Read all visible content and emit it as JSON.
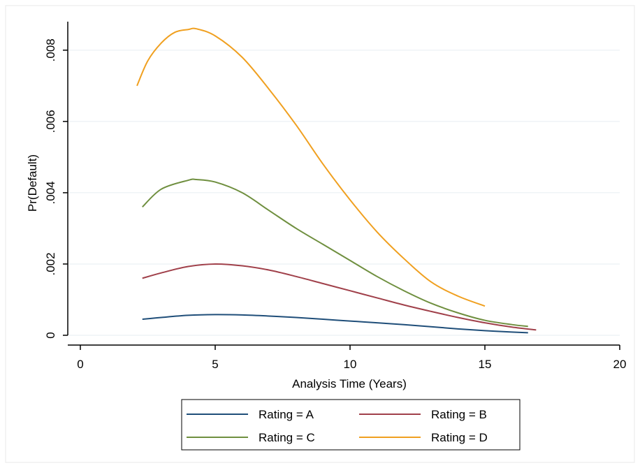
{
  "chart_data": {
    "type": "line",
    "title": "",
    "xlabel": "Analysis Time (Years)",
    "ylabel": "Pr(Default)",
    "xlim": [
      0,
      20
    ],
    "ylim": [
      0,
      0.0088
    ],
    "xticks": [
      0,
      5,
      10,
      15,
      20
    ],
    "xtick_labels": [
      "0",
      "5",
      "10",
      "15",
      "20"
    ],
    "yticks": [
      0,
      0.002,
      0.004,
      0.006,
      0.008
    ],
    "ytick_labels": [
      "0",
      ".002",
      ".004",
      ".006",
      ".008"
    ],
    "grid": "horizontal",
    "legend_position": "bottom",
    "series": [
      {
        "name": "Rating = A",
        "color": "#1f4e79",
        "x": [
          2.3,
          3.0,
          4.0,
          5.0,
          6.0,
          7.0,
          8.0,
          9.0,
          10.0,
          11.0,
          12.0,
          13.0,
          14.0,
          15.0,
          16.0,
          16.6
        ],
        "y": [
          0.00045,
          0.0005,
          0.00056,
          0.00058,
          0.00057,
          0.00054,
          0.0005,
          0.00045,
          0.0004,
          0.00035,
          0.0003,
          0.00024,
          0.00018,
          0.00013,
          9e-05,
          7e-05
        ]
      },
      {
        "name": "Rating = B",
        "color": "#a0404a",
        "x": [
          2.3,
          3.0,
          4.0,
          5.0,
          6.0,
          7.0,
          8.0,
          9.0,
          10.0,
          11.0,
          12.0,
          13.0,
          14.0,
          15.0,
          16.0,
          16.9
        ],
        "y": [
          0.0016,
          0.00175,
          0.00193,
          0.002,
          0.00195,
          0.00183,
          0.00165,
          0.00145,
          0.00125,
          0.00105,
          0.00085,
          0.00067,
          0.0005,
          0.00035,
          0.00023,
          0.00015
        ]
      },
      {
        "name": "Rating = C",
        "color": "#6f8f3f",
        "x": [
          2.3,
          3.0,
          4.0,
          4.3,
          5.0,
          6.0,
          7.0,
          8.0,
          9.0,
          10.0,
          11.0,
          12.0,
          13.0,
          14.0,
          15.0,
          16.0,
          16.6
        ],
        "y": [
          0.0036,
          0.0041,
          0.00435,
          0.00437,
          0.0043,
          0.004,
          0.0035,
          0.003,
          0.00255,
          0.0021,
          0.00165,
          0.00125,
          0.0009,
          0.00063,
          0.00042,
          0.0003,
          0.00025
        ]
      },
      {
        "name": "Rating = D",
        "color": "#f0a020",
        "x": [
          2.1,
          2.5,
          3.0,
          3.5,
          4.0,
          4.3,
          5.0,
          6.0,
          7.0,
          8.0,
          9.0,
          10.0,
          11.0,
          12.0,
          13.0,
          14.0,
          15.0
        ],
        "y": [
          0.007,
          0.0077,
          0.0082,
          0.0085,
          0.00858,
          0.0086,
          0.0084,
          0.0078,
          0.0069,
          0.0059,
          0.0048,
          0.0038,
          0.0029,
          0.00215,
          0.0015,
          0.0011,
          0.00082
        ]
      }
    ]
  }
}
